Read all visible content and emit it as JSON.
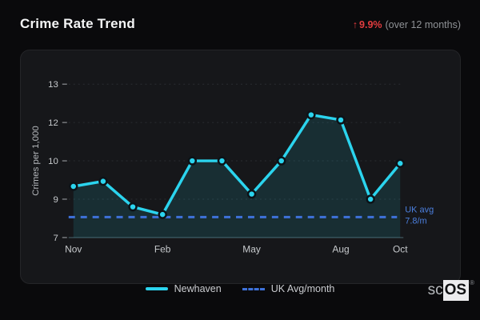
{
  "header": {
    "title": "Crime Rate Trend",
    "trend_arrow": "↑",
    "trend_value": "9.9%",
    "trend_note": "(over 12 months)"
  },
  "chart_data": {
    "type": "line",
    "title": "Crime Rate Trend",
    "xlabel": "",
    "ylabel": "Crimes per 1,000",
    "x": [
      "Nov",
      "Dec",
      "Jan",
      "Feb",
      "Mar",
      "Apr",
      "May",
      "Jun",
      "Jul",
      "Aug",
      "Sep",
      "Oct"
    ],
    "series": [
      {
        "name": "Newhaven",
        "values": [
          9.0,
          9.2,
          8.2,
          7.9,
          10.0,
          10.0,
          8.7,
          10.0,
          11.8,
          11.6,
          8.5,
          9.9
        ],
        "color": "#2bd4ee",
        "style": "solid",
        "markers": true
      }
    ],
    "reference_line": {
      "name": "UK Avg/month",
      "value": 7.8,
      "color": "#3e72da",
      "style": "dashed",
      "label_line1": "UK avg",
      "label_line2": "7.8/m",
      "label_color": "#4c80e0"
    },
    "ylim": [
      7,
      13
    ],
    "y_ticks": [
      {
        "value": 7,
        "label": "7"
      },
      {
        "value": 8.5,
        "label": "9"
      },
      {
        "value": 10,
        "label": "10"
      },
      {
        "value": 11.5,
        "label": "12"
      },
      {
        "value": 13,
        "label": "13"
      }
    ],
    "x_ticks": [
      {
        "index": 0,
        "label": "Nov"
      },
      {
        "index": 3,
        "label": "Feb"
      },
      {
        "index": 6,
        "label": "May"
      },
      {
        "index": 9,
        "label": "Aug"
      },
      {
        "index": 11,
        "label": "Oct"
      }
    ],
    "grid": true,
    "legend_position": "bottom",
    "colors": {
      "grid": "#2a2d31",
      "axis_line": "#3c5158",
      "tick_text": "#c6c9cc",
      "axis_title": "#b3b6ba",
      "marker_stroke": "#0c1318",
      "area_fill": "rgba(43,212,238,0.12)"
    }
  },
  "legend": {
    "items": [
      {
        "label": "Newhaven",
        "swatch": "solid-line",
        "color": "#2bd4ee"
      },
      {
        "label": "UK Avg/month",
        "swatch": "dashed-line",
        "color": "#3e72da"
      }
    ]
  },
  "logo": {
    "prefix": "sc",
    "suffix": "OS",
    "registered": "®"
  }
}
